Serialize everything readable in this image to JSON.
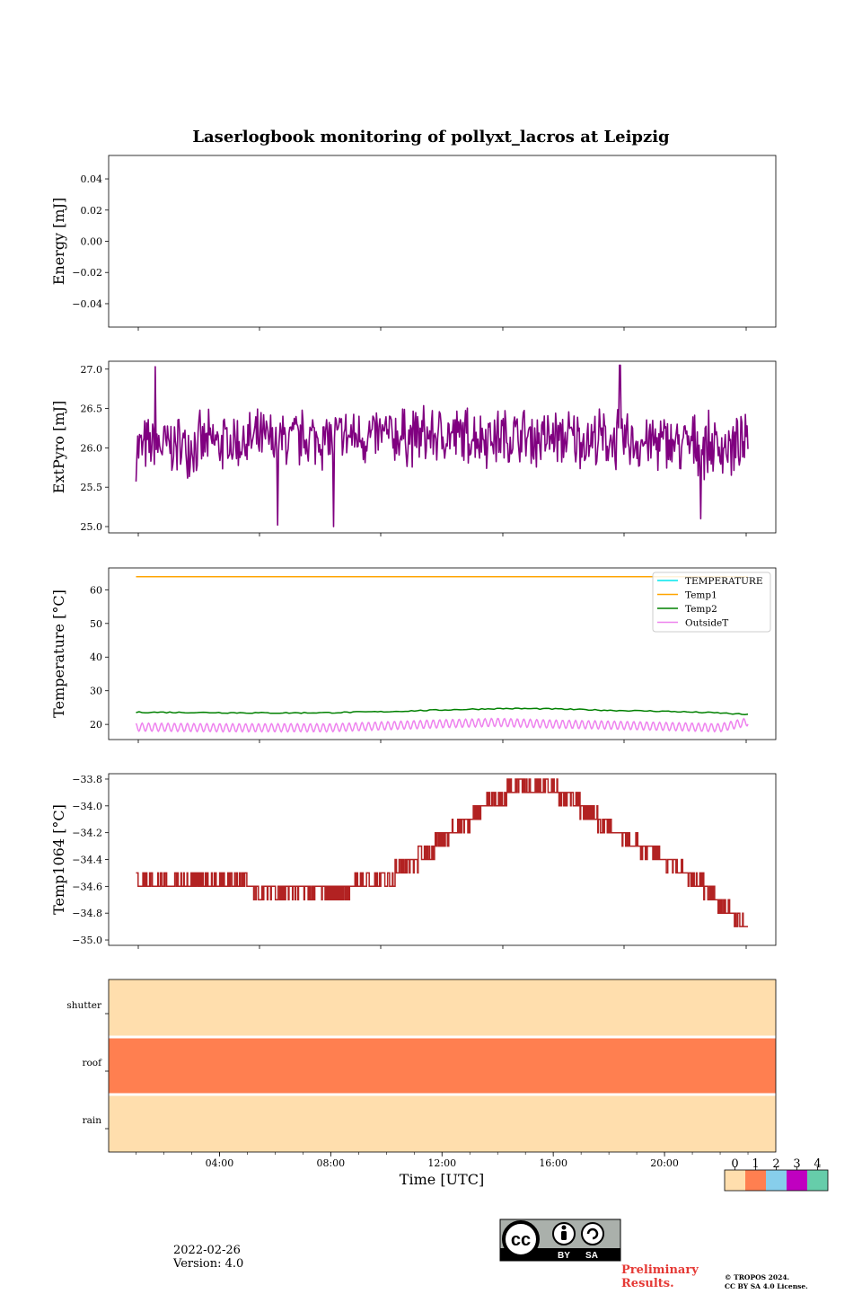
{
  "figure": {
    "title": "Laserlogbook monitoring of pollyxt_lacros at Leipzig"
  },
  "chart_data": [
    {
      "type": "line",
      "ylabel": "Energy [mJ]",
      "ylim": [
        -0.055,
        0.055
      ],
      "yticks": [
        0.04,
        0.02,
        0.0,
        -0.02,
        -0.04
      ],
      "ytick_labels": [
        "0.04",
        "0.02",
        "0.00",
        "−0.02",
        "−0.04"
      ],
      "series": [],
      "grid": false
    },
    {
      "type": "line",
      "ylabel": "ExtPyro [mJ]",
      "ylim": [
        24.92,
        27.1
      ],
      "yticks": [
        27.0,
        26.5,
        26.0,
        25.5,
        25.0
      ],
      "ytick_labels": [
        "27.0",
        "26.5",
        "26.0",
        "25.5",
        "25.0"
      ],
      "x_range_hours": [
        1.0,
        23.0
      ],
      "series": [
        {
          "color": "#800080",
          "mean": 26.0,
          "noise_amplitude": 0.45,
          "spikes": [
            [
              1.7,
              27.03
            ],
            [
              6.1,
              25.02
            ],
            [
              8.1,
              25.0
            ],
            [
              18.4,
              27.05
            ],
            [
              21.3,
              25.1
            ]
          ],
          "values_min": 25.0,
          "values_max": 27.05
        }
      ],
      "grid": false
    },
    {
      "type": "line",
      "ylabel": "Temperature [°C]",
      "ylim": [
        15.5,
        66.5
      ],
      "yticks": [
        60,
        50,
        40,
        30,
        20
      ],
      "ytick_labels": [
        "60",
        "50",
        "40",
        "30",
        "20"
      ],
      "legend_position": "top-right",
      "series": [
        {
          "name": "TEMPERATURE",
          "color": "#00e5ee",
          "x_hours": [],
          "values": []
        },
        {
          "name": "Temp1",
          "color": "#ffa500",
          "x_hours": [
            1.0,
            23.0
          ],
          "values": [
            63.9,
            63.9
          ]
        },
        {
          "name": "Temp2",
          "color": "#008000",
          "x_hours": [
            1,
            2,
            4,
            6,
            8,
            10,
            12,
            13,
            14,
            15,
            16,
            18,
            20,
            22,
            23
          ],
          "values": [
            23.6,
            23.6,
            23.5,
            23.4,
            23.5,
            23.8,
            24.3,
            24.5,
            24.7,
            24.7,
            24.6,
            24.2,
            23.9,
            23.4,
            22.9
          ]
        },
        {
          "name": "OutsideT",
          "color": "#ee82ee",
          "x_hours": [
            1,
            4,
            8,
            10,
            12,
            14,
            16,
            18,
            20,
            22,
            23
          ],
          "values": [
            19.2,
            19.0,
            19.0,
            19.6,
            20.2,
            20.6,
            20.1,
            19.8,
            19.4,
            19.0,
            20.8
          ],
          "oscillation": 1.2
        }
      ],
      "grid": false
    },
    {
      "type": "line",
      "ylabel": "Temp1064 [°C]",
      "ylim": [
        -35.04,
        -33.76
      ],
      "yticks": [
        -33.8,
        -34.0,
        -34.2,
        -34.4,
        -34.6,
        -34.8,
        -35.0
      ],
      "ytick_labels": [
        "−33.8",
        "−34.0",
        "−34.2",
        "−34.4",
        "−34.6",
        "−34.8",
        "−35.0"
      ],
      "series": [
        {
          "color": "#b22222",
          "x_hours": [
            1.0,
            4.0,
            6.0,
            8.0,
            9.5,
            10.5,
            11.3,
            12.0,
            12.7,
            13.3,
            13.9,
            14.5,
            15.5,
            16.4,
            17.1,
            17.7,
            18.4,
            19.1,
            19.8,
            20.6,
            21.3,
            22.0,
            22.6,
            23.0
          ],
          "values": [
            -34.55,
            -34.58,
            -34.62,
            -34.62,
            -34.58,
            -34.48,
            -34.38,
            -34.25,
            -34.15,
            -34.05,
            -33.95,
            -33.88,
            -33.85,
            -33.92,
            -34.02,
            -34.12,
            -34.22,
            -34.3,
            -34.38,
            -34.48,
            -34.58,
            -34.72,
            -34.82,
            -34.95
          ],
          "step": 0.1
        }
      ],
      "grid": false
    },
    {
      "type": "heatmap",
      "rows": [
        "shutter",
        "roof",
        "rain"
      ],
      "row_status": [
        0,
        1,
        0
      ],
      "xlabel": "Time [UTC]",
      "xlim_hours": [
        0,
        24
      ],
      "xticks": [
        "04:00",
        "08:00",
        "12:00",
        "16:00",
        "20:00"
      ],
      "xtick_hours": [
        4,
        8,
        12,
        16,
        20
      ],
      "colorbar": {
        "labels": [
          "0",
          "1",
          "2",
          "3",
          "4"
        ],
        "colors": [
          "#ffdead",
          "#ff7f50",
          "#87ceeb",
          "#c000c0",
          "#66cdaa"
        ]
      }
    }
  ],
  "footer": {
    "date": "2022-02-26",
    "version": "Version: 4.0",
    "license_badge": {
      "main": "cc",
      "by": "BY",
      "sa": "SA"
    },
    "preliminary_line1": "Preliminary",
    "preliminary_line2": "Results.",
    "copyright_line1": "© TROPOS 2024.",
    "copyright_line2": "CC BY SA 4.0 License."
  }
}
